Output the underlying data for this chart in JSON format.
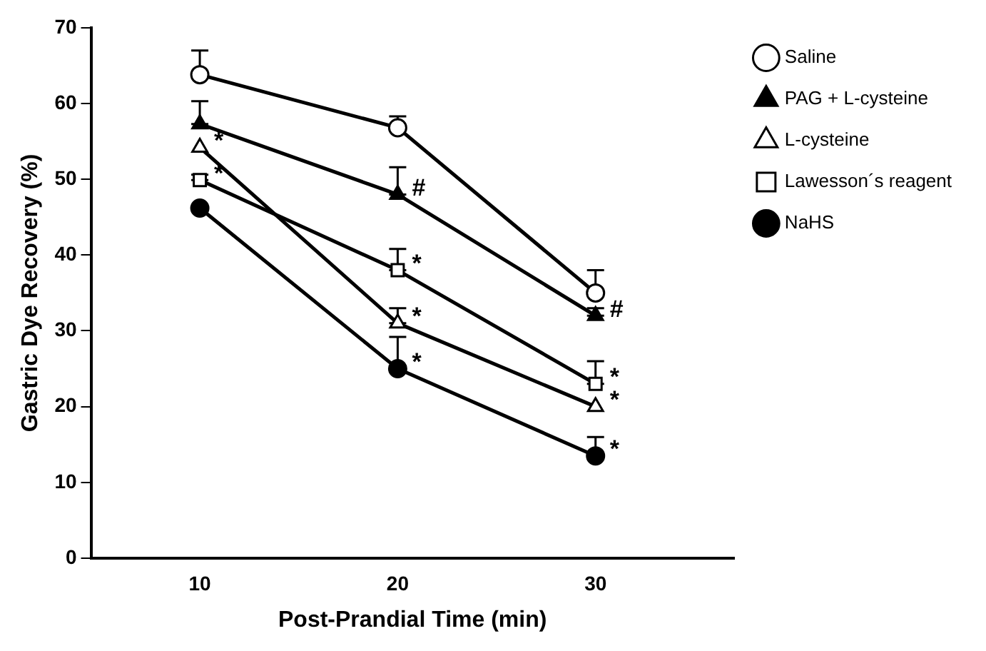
{
  "chart_data": {
    "type": "line",
    "xlabel": "Post-Prandial Time (min)",
    "ylabel": "Gastric Dye Recovery (%)",
    "x": [
      10,
      20,
      30
    ],
    "xlim": [
      4.5,
      37
    ],
    "xticks": [
      10,
      20,
      30
    ],
    "ylim": [
      0,
      70
    ],
    "yticks": [
      0,
      10,
      20,
      30,
      40,
      50,
      60,
      70
    ],
    "grid": false,
    "legend": "top right",
    "line_style": "solid",
    "series": [
      {
        "name": "Saline",
        "color": "#000000",
        "marker": "circle",
        "values": [
          63.8,
          56.8,
          35
        ],
        "errors": [
          [
            63.8,
            67
          ],
          [
            56.8,
            58.3
          ],
          [
            35,
            38
          ]
        ]
      },
      {
        "name": "PAG + L-cysteine",
        "color": "#000000",
        "marker": "triangle",
        "values": [
          57.3,
          48,
          32
        ],
        "errors": [
          [
            57.3,
            60.3
          ],
          [
            48,
            51.6
          ],
          [
            32,
            33
          ]
        ]
      },
      {
        "name": "L-cysteine",
        "color": "#000000",
        "marker": "triangle",
        "values": [
          54.2,
          31,
          20
        ],
        "errors": [
          null,
          [
            31,
            33
          ],
          null
        ]
      },
      {
        "name": "Lawesson´s reagent",
        "color": "#000000",
        "marker": "square",
        "values": [
          49.9,
          38,
          23
        ],
        "errors": [
          [
            49.9,
            50.6
          ],
          [
            38,
            40.8
          ],
          [
            23,
            26
          ]
        ]
      },
      {
        "name": "NaHS",
        "color": "#000000",
        "marker": "circle",
        "values": [
          46.2,
          25,
          13.5
        ],
        "errors": [
          null,
          [
            25,
            29.2
          ],
          [
            13.5,
            16
          ]
        ]
      }
    ],
    "annotations": [
      {
        "text": "*",
        "x": 10,
        "y": 54.2
      },
      {
        "text": "*",
        "x": 10,
        "y": 49.9
      },
      {
        "text": "#",
        "x": 20,
        "y": 48
      },
      {
        "text": "*",
        "x": 20,
        "y": 38
      },
      {
        "text": "*",
        "x": 20,
        "y": 31
      },
      {
        "text": "*",
        "x": 20,
        "y": 25
      },
      {
        "text": "#",
        "x": 30,
        "y": 32
      },
      {
        "text": "*",
        "x": 30,
        "y": 23
      },
      {
        "text": "*",
        "x": 30,
        "y": 20
      },
      {
        "text": "*",
        "x": 30,
        "y": 13.5
      }
    ]
  }
}
